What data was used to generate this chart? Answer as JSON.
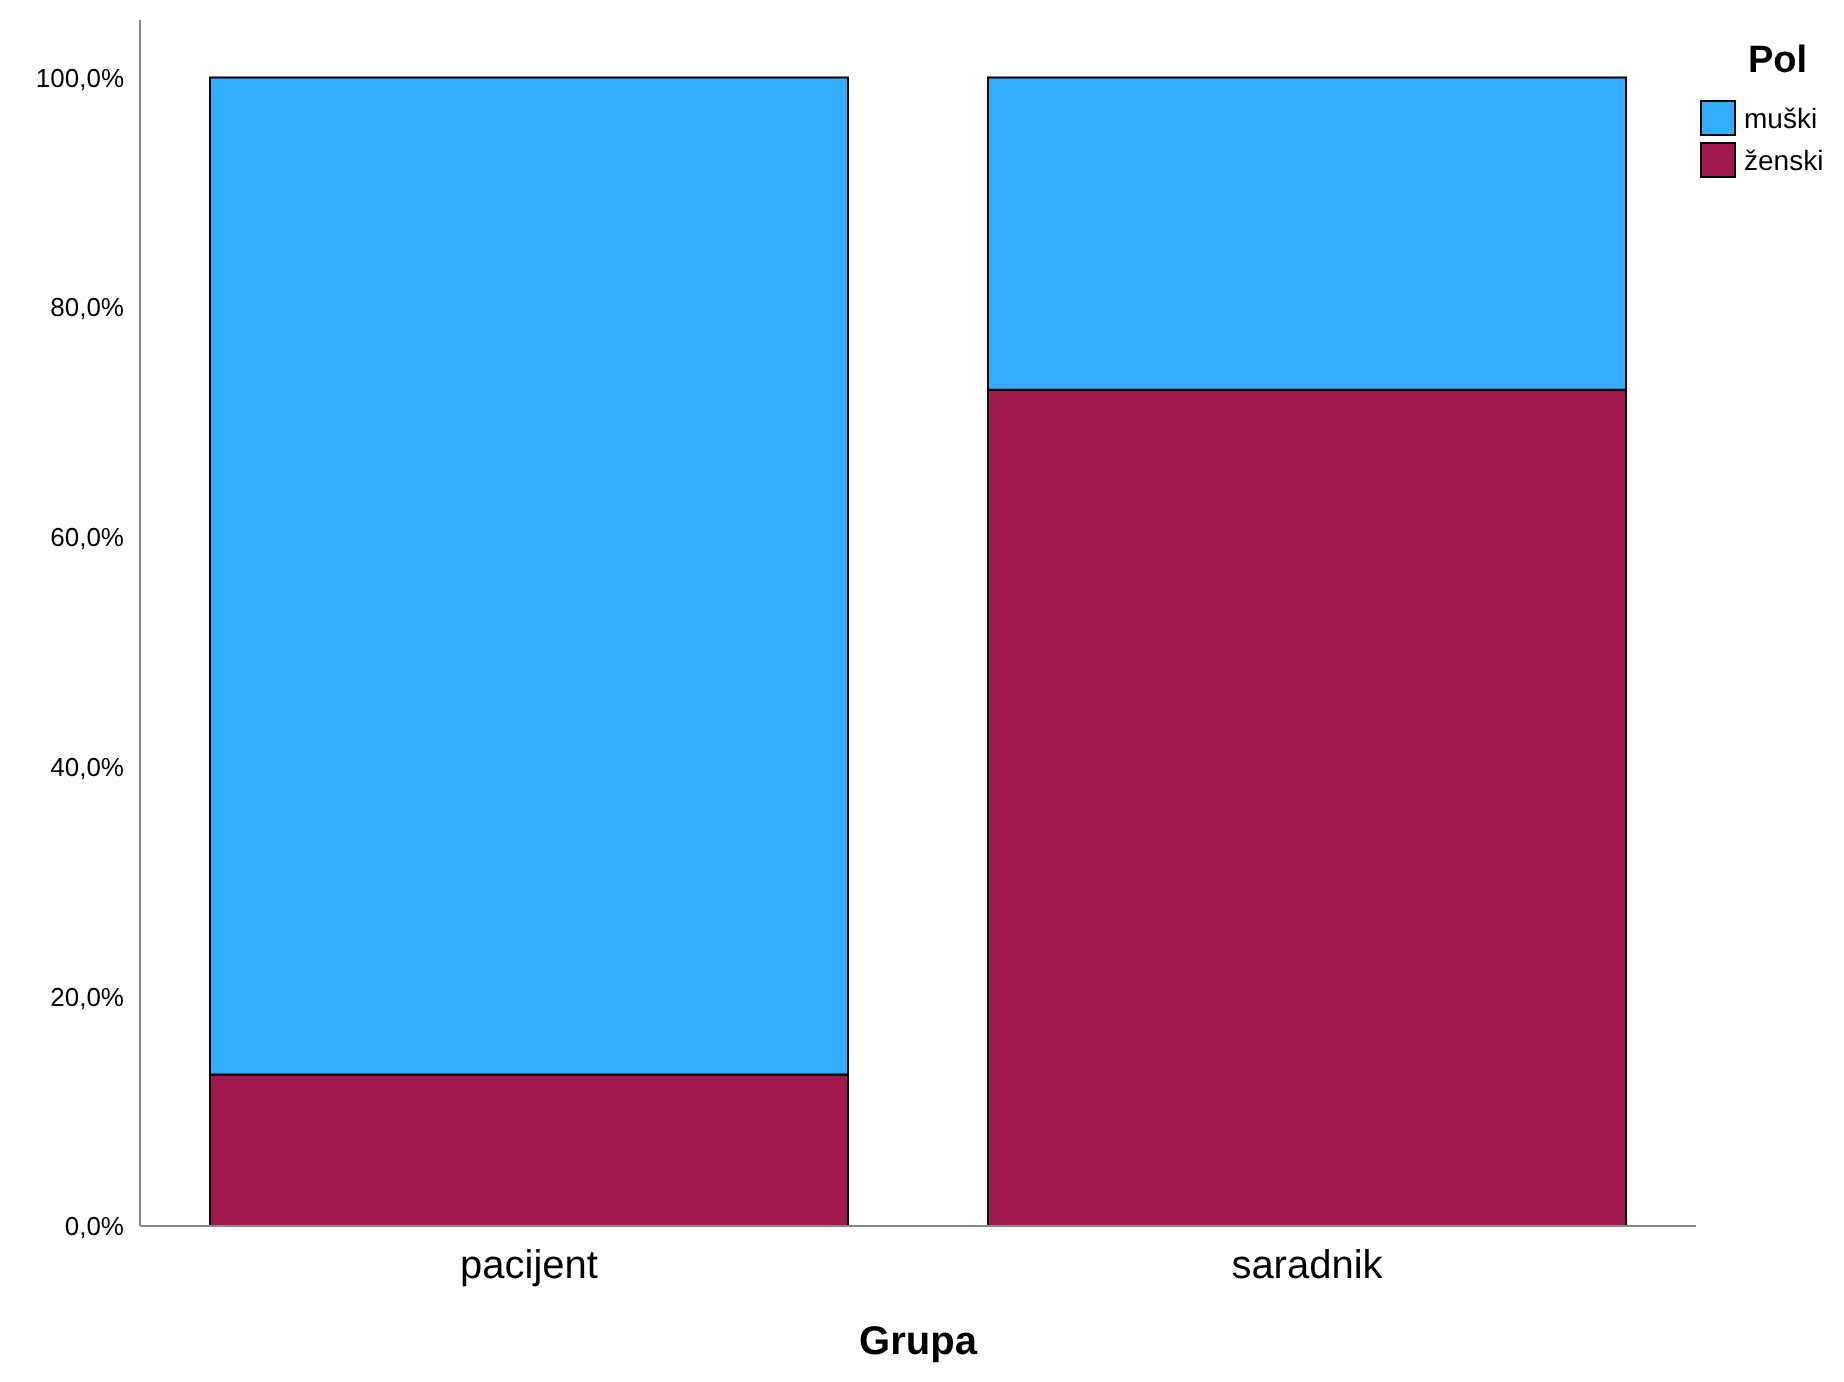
{
  "chart_data": {
    "type": "bar",
    "stacked": true,
    "xlabel": "Grupa",
    "legend_title": "Pol",
    "legend": "top right",
    "categories": [
      "pacijent",
      "saradnik"
    ],
    "series": [
      {
        "name": "ženski",
        "color": "#a0194e",
        "values": [
          13.2,
          72.8
        ]
      },
      {
        "name": "muški",
        "color": "#33adff",
        "values": [
          86.8,
          27.2
        ]
      }
    ],
    "ylim": [
      0,
      105
    ],
    "yticks": [
      {
        "value": 0,
        "label": "0,0%"
      },
      {
        "value": 20,
        "label": "20,0%"
      },
      {
        "value": 40,
        "label": "40,0%"
      },
      {
        "value": 60,
        "label": "60,0%"
      },
      {
        "value": 80,
        "label": "80,0%"
      },
      {
        "value": 100,
        "label": "100,0%"
      }
    ],
    "grid": false
  }
}
